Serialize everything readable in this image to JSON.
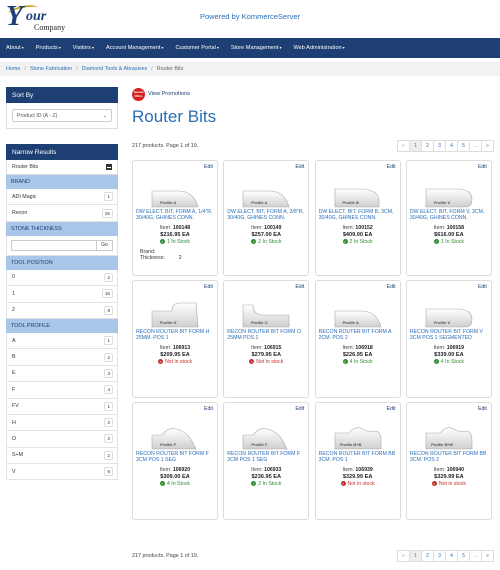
{
  "header": {
    "logo_y": "Y",
    "logo_our": "our",
    "logo_company": "Company",
    "powered": "Powered by KommerceServer"
  },
  "nav": [
    {
      "label": "About",
      "caret": true
    },
    {
      "label": "Products",
      "caret": true
    },
    {
      "label": "Visitors",
      "caret": true
    },
    {
      "label": "Account Management",
      "caret": true
    },
    {
      "label": "Customer Portal",
      "caret": true
    },
    {
      "label": "Store Management",
      "caret": true
    },
    {
      "label": "Web Administration",
      "caret": true
    }
  ],
  "breadcrumb": [
    "Home",
    "Stone Fabrication",
    "Diamond Tools & Abrasives",
    "Router Bits"
  ],
  "sidebar": {
    "sort_title": "Sort By",
    "sort_value": "Product ID (A - Z)",
    "narrow_title": "Narrow Results",
    "selected_filter": "Router Bits",
    "brand_head": "BRAND",
    "brands": [
      {
        "label": "ADI Magic",
        "count": "1"
      },
      {
        "label": "Recon",
        "count": "26"
      }
    ],
    "thickness_head": "STONE THICKNESS",
    "go_label": "Go",
    "position_head": "TOOL POSITION",
    "positions": [
      {
        "label": "0",
        "count": "2"
      },
      {
        "label": "1",
        "count": "15"
      },
      {
        "label": "2",
        "count": "8"
      }
    ],
    "profile_head": "TOOL PROFILE",
    "profiles": [
      {
        "label": "A",
        "count": "1"
      },
      {
        "label": "B",
        "count": "2"
      },
      {
        "label": "E",
        "count": "3"
      },
      {
        "label": "F",
        "count": "4"
      },
      {
        "label": "FV",
        "count": "1"
      },
      {
        "label": "H",
        "count": "2"
      },
      {
        "label": "O",
        "count": "2"
      },
      {
        "label": "S+M",
        "count": "2"
      },
      {
        "label": "V",
        "count": "6"
      }
    ]
  },
  "main": {
    "promo_badge": "Special Offers",
    "promo_link": "View Promotions",
    "title": "Router Bits",
    "count_text": "217 products. Page 1 of 19.",
    "pager": [
      "«",
      "1",
      "2",
      "3",
      "4",
      "5",
      "...",
      "»"
    ],
    "edit_label": "Edit",
    "item_label": "Item:",
    "products": [
      {
        "profile": "Profile A",
        "name": "DW ELECT. BIT, FORM A, 1/4\"R, 30/40G, GHINES CONN.",
        "item": "100148",
        "price": "$216.95 EA",
        "stock": "1 In Stock",
        "in": true,
        "shape": "a"
      },
      {
        "profile": "Profile A",
        "name": "DW ELECT. BIT, FORM A, 3/8\"R, 30/40G, GHINES CONN.",
        "item": "100149",
        "price": "$257.00 EA",
        "stock": "2 In Stock",
        "in": true,
        "shape": "a"
      },
      {
        "profile": "Profile B",
        "name": "DW ELECT. BIT, FORM B, 3CM, 30/40G, GHINES CONN.",
        "item": "100152",
        "price": "$409.00 EA",
        "stock": "2 In Stock",
        "in": true,
        "shape": "b"
      },
      {
        "profile": "Profile V",
        "name": "DW ELECT. BIT, FORM V, 3CM, 30/40G, GHINES CONN.",
        "item": "100158",
        "price": "$616.00 EA",
        "stock": "1 In Stock",
        "in": true,
        "shape": "v"
      },
      {
        "profile": "Profile H",
        "name": "RECON ROUTER BIT FORM H 25MM. POS 1",
        "item": "106913",
        "price": "$209.95 EA",
        "stock": "Not in stock",
        "in": false,
        "shape": "h"
      },
      {
        "profile": "Profile O",
        "name": "RECON ROUTER BIT FORM O 25MM POS 1",
        "item": "106915",
        "price": "$279.95 EA",
        "stock": "Not in stock",
        "in": false,
        "shape": "o"
      },
      {
        "profile": "Profile A",
        "name": "RECON ROUTER BIT FORM A 2CM. POS 2",
        "item": "106918",
        "price": "$226.95 EA",
        "stock": "4 In Stock",
        "in": true,
        "shape": "a"
      },
      {
        "profile": "Profile V",
        "name": "RECON ROUTER BIT FORM V 3CM POS 1 SEGMENTED",
        "item": "106919",
        "price": "$339.00 EA",
        "stock": "4 In Stock",
        "in": true,
        "shape": "v"
      },
      {
        "profile": "Profile F",
        "name": "RECON ROUTER BIT FORM F 3CM POS 1 SEG",
        "item": "106920",
        "price": "$309.00 EA",
        "stock": "4 In Stock",
        "in": true,
        "shape": "f"
      },
      {
        "profile": "Profile F",
        "name": "RECON ROUTER BIT FORM F 2CM POS 1 SEG",
        "item": "106933",
        "price": "$236.95 EA",
        "stock": "2 In Stock",
        "in": true,
        "shape": "f"
      },
      {
        "profile": "Profile B+B",
        "name": "RECON ROUTER BIT FORM BB 3CM. POS 1",
        "item": "106939",
        "price": "$329.99 EA",
        "stock": "Not in stock",
        "in": false,
        "shape": "bb"
      },
      {
        "profile": "Profile B+B",
        "name": "RECON ROUTER BIT FORM BB 3CM. POS 2",
        "item": "106940",
        "price": "$329.99 EA",
        "stock": "Not in stock",
        "in": false,
        "shape": "bb"
      }
    ],
    "first_extra": {
      "brand_label": "Brand:",
      "thickness_label": "Thickness:",
      "thickness_value": "2"
    }
  }
}
